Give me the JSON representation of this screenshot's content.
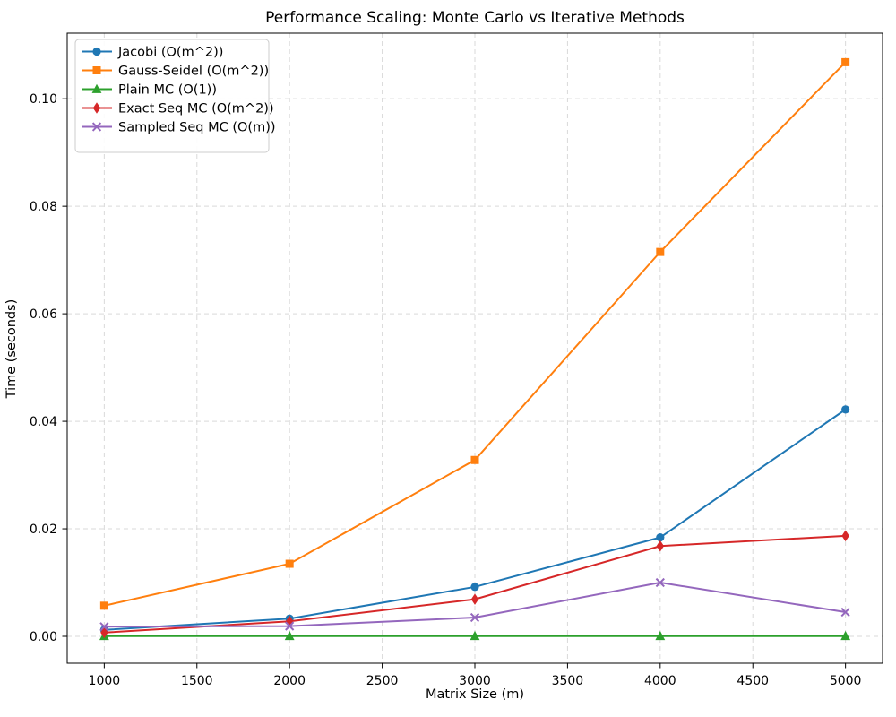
{
  "chart_data": {
    "type": "line",
    "title": "Performance Scaling: Monte Carlo vs Iterative Methods",
    "xlabel": "Matrix Size (m)",
    "ylabel": "Time (seconds)",
    "x": [
      1000,
      2000,
      3000,
      4000,
      5000
    ],
    "series": [
      {
        "name": "Jacobi (O(m^2))",
        "color": "#1f77b4",
        "marker": "circle",
        "values": [
          0.0012,
          0.0033,
          0.0092,
          0.0184,
          0.0422
        ]
      },
      {
        "name": "Gauss-Seidel (O(m^2))",
        "color": "#ff7f0e",
        "marker": "square",
        "values": [
          0.0057,
          0.0135,
          0.0328,
          0.0715,
          0.1068
        ]
      },
      {
        "name": "Plain MC (O(1))",
        "color": "#2ca02c",
        "marker": "triangle-up",
        "values": [
          5e-05,
          5e-05,
          5e-05,
          5e-05,
          5e-05
        ]
      },
      {
        "name": "Exact Seq MC (O(m^2))",
        "color": "#d62728",
        "marker": "thin-diamond",
        "values": [
          0.0007,
          0.0028,
          0.0069,
          0.0168,
          0.0187
        ]
      },
      {
        "name": "Sampled Seq MC (O(m))",
        "color": "#9467bd",
        "marker": "x",
        "values": [
          0.0018,
          0.0019,
          0.0035,
          0.01,
          0.0045
        ]
      }
    ],
    "xlim": [
      800,
      5200
    ],
    "ylim": [
      -0.005,
      0.1122
    ],
    "xticks": {
      "values": [
        1000,
        1500,
        2000,
        2500,
        3000,
        3500,
        4000,
        4500,
        5000
      ],
      "labels": [
        "1000",
        "1500",
        "2000",
        "2500",
        "3000",
        "3500",
        "4000",
        "4500",
        "5000"
      ]
    },
    "yticks": {
      "values": [
        0.0,
        0.02,
        0.04,
        0.06,
        0.08,
        0.1
      ],
      "labels": [
        "0.00",
        "0.02",
        "0.04",
        "0.06",
        "0.08",
        "0.10"
      ]
    },
    "grid": true,
    "grid_style": "dashed",
    "legend_position": "upper left",
    "colors": {
      "grid": "#d9d9d9",
      "spine": "#000000",
      "background": "#ffffff",
      "legend_border": "#cccccc",
      "legend_background": "#ffffff"
    }
  }
}
